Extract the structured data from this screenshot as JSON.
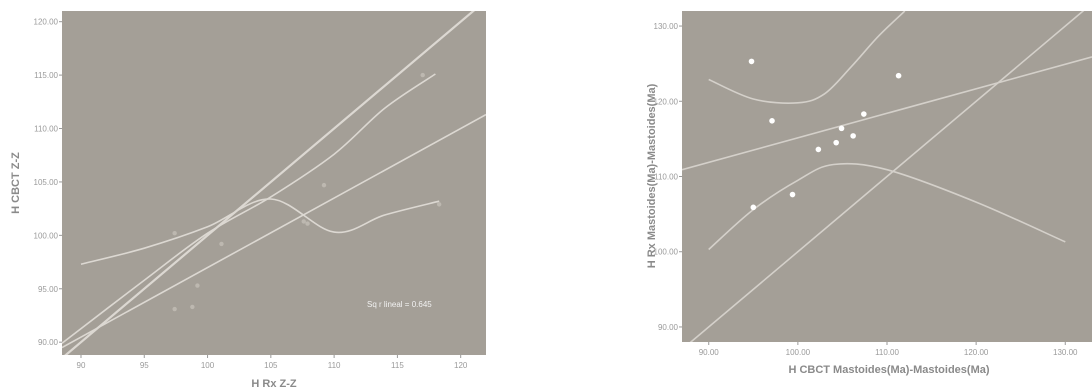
{
  "chart_data": [
    {
      "type": "scatter",
      "xlabel": "H Rx Z-Z",
      "ylabel": "H CBCT Z-Z",
      "xlim": [
        88.5,
        122
      ],
      "ylim": [
        88.8,
        121
      ],
      "xticks": [
        90,
        95,
        100,
        105,
        110,
        115,
        120
      ],
      "xtick_labels": [
        "90",
        "95",
        "100",
        "105",
        "110",
        "115",
        "120"
      ],
      "yticks": [
        90,
        95,
        100,
        105,
        110,
        115,
        120
      ],
      "ytick_labels": [
        "90.00",
        "95.00",
        "100.00",
        "105.00",
        "110.00",
        "115.00",
        "120.00"
      ],
      "grid": false,
      "plot_background": "#a49f97",
      "point_color": "#bdb8b0",
      "line_color": "#dcd8d2",
      "annotation": "Sq r lineal = 0.645",
      "points": [
        {
          "x": 97.4,
          "y": 100.2
        },
        {
          "x": 97.4,
          "y": 93.1
        },
        {
          "x": 98.8,
          "y": 93.3
        },
        {
          "x": 99.2,
          "y": 95.3
        },
        {
          "x": 101.1,
          "y": 99.2
        },
        {
          "x": 107.6,
          "y": 101.3
        },
        {
          "x": 107.9,
          "y": 101.1
        },
        {
          "x": 109.2,
          "y": 104.7
        },
        {
          "x": 117.0,
          "y": 115.0
        },
        {
          "x": 118.3,
          "y": 102.9
        }
      ],
      "identity_line": [
        [
          88.5,
          88.5
        ],
        [
          122,
          122
        ]
      ],
      "fit_line": [
        [
          88.5,
          89.5
        ],
        [
          122,
          111.3
        ]
      ],
      "ci_upper": [
        [
          88.5,
          89.9
        ],
        [
          95,
          95.8
        ],
        [
          100,
          100.2
        ],
        [
          105,
          103.6
        ],
        [
          110,
          107.6
        ],
        [
          114,
          111.9
        ],
        [
          118,
          115.1
        ]
      ],
      "ci_lower": [
        [
          90,
          97.3
        ],
        [
          95,
          98.8
        ],
        [
          100,
          100.8
        ],
        [
          105,
          103.4
        ],
        [
          110,
          100.3
        ],
        [
          114,
          101.9
        ],
        [
          118.3,
          103.2
        ]
      ]
    },
    {
      "type": "scatter",
      "xlabel": "H CBCT Mastoides(Ma)-Mastoides(Ma)",
      "ylabel": "H Rx Mastoides(Ma)-Mastoides(Ma)",
      "xlim": [
        87,
        133
      ],
      "ylim": [
        88,
        132
      ],
      "xticks": [
        90,
        100,
        110,
        120,
        130
      ],
      "xtick_labels": [
        "90.00",
        "100.00",
        "110.00",
        "120.00",
        "130.00"
      ],
      "yticks": [
        90,
        100,
        110,
        120,
        130
      ],
      "ytick_labels": [
        "90.00",
        "100.00",
        "110.00",
        "120.00",
        "130.00"
      ],
      "grid": false,
      "plot_background": "#a49f97",
      "point_color": "#ffffff",
      "line_color": "#d4d0ca",
      "points": [
        {
          "x": 94.8,
          "y": 125.3
        },
        {
          "x": 95.0,
          "y": 105.9
        },
        {
          "x": 97.1,
          "y": 117.4
        },
        {
          "x": 99.4,
          "y": 107.6
        },
        {
          "x": 102.3,
          "y": 113.6
        },
        {
          "x": 104.3,
          "y": 114.5
        },
        {
          "x": 104.9,
          "y": 116.4
        },
        {
          "x": 106.2,
          "y": 115.4
        },
        {
          "x": 107.4,
          "y": 118.3
        },
        {
          "x": 111.3,
          "y": 123.4
        }
      ],
      "identity_line": [
        [
          87,
          87
        ],
        [
          133,
          133
        ]
      ],
      "fit_line": [
        [
          87,
          110.9
        ],
        [
          133,
          125.9
        ]
      ],
      "ci_upper": [
        [
          90,
          122.9
        ],
        [
          95,
          120.3
        ],
        [
          100,
          119.8
        ],
        [
          103,
          121.0
        ],
        [
          106,
          124.6
        ],
        [
          109,
          128.6
        ],
        [
          112,
          132.0
        ]
      ],
      "ci_lower": [
        [
          90,
          100.3
        ],
        [
          95,
          105.6
        ],
        [
          100,
          109.5
        ],
        [
          104,
          111.6
        ],
        [
          110,
          110.9
        ],
        [
          120,
          106.6
        ],
        [
          130,
          101.3
        ]
      ]
    }
  ]
}
